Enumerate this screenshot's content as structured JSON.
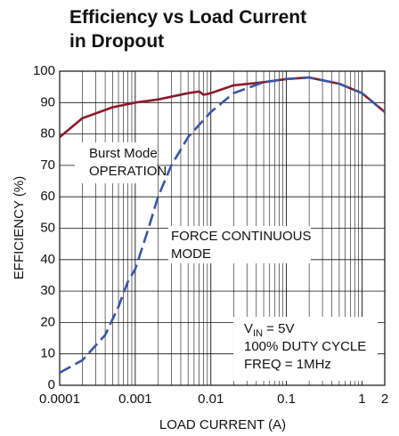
{
  "chart_data": {
    "type": "line",
    "title": "Efficiency vs Load Current in Dropout",
    "xlabel": "LOAD CURRENT (A)",
    "ylabel": "EFFICIENCY (%)",
    "xscale": "log",
    "xlim": [
      0.0001,
      2
    ],
    "ylim": [
      0,
      100
    ],
    "xticks": [
      0.0001,
      0.001,
      0.01,
      0.1,
      1,
      2
    ],
    "xminorticks": [
      0.0002,
      0.0003,
      0.0004,
      0.0005,
      0.0006,
      0.0007,
      0.0008,
      0.0009,
      0.002,
      0.003,
      0.004,
      0.005,
      0.006,
      0.007,
      0.008,
      0.009,
      0.02,
      0.03,
      0.04,
      0.05,
      0.06,
      0.07,
      0.08,
      0.09,
      0.2,
      0.3,
      0.4,
      0.5,
      0.6,
      0.7,
      0.8,
      0.9
    ],
    "yticks": [
      0,
      10,
      20,
      30,
      40,
      50,
      60,
      70,
      80,
      90,
      100
    ],
    "grid": true,
    "series": [
      {
        "name": "Burst Mode OPERATION",
        "color": "#8b1a2b",
        "dash": false,
        "x": [
          0.0001,
          0.0002,
          0.0005,
          0.001,
          0.002,
          0.005,
          0.007,
          0.008,
          0.01,
          0.02,
          0.05,
          0.1,
          0.2,
          0.5,
          1,
          2
        ],
        "values": [
          79,
          85,
          88.5,
          90,
          91,
          93,
          93.5,
          92.5,
          93,
          95.5,
          96.5,
          97.5,
          98,
          96,
          93,
          87
        ]
      },
      {
        "name": "FORCE CONTINUOUS MODE",
        "color": "#3a55a4",
        "dash": true,
        "x": [
          0.0001,
          0.0002,
          0.0004,
          0.0006,
          0.0008,
          0.001,
          0.0015,
          0.002,
          0.003,
          0.005,
          0.01,
          0.02,
          0.05,
          0.1,
          0.2,
          0.5,
          1,
          2
        ],
        "values": [
          4,
          8,
          16,
          25,
          33,
          37,
          50,
          60,
          70,
          79,
          87,
          93,
          96.5,
          97.5,
          98,
          96,
          93,
          87
        ]
      }
    ],
    "annotations": [
      {
        "lines": [
          "Burst Mode",
          "OPERATION"
        ]
      },
      {
        "lines": [
          "FORCE CONTINUOUS",
          "MODE"
        ]
      },
      {
        "lines": [
          "100% DUTY CYCLE",
          "FREQ = 1MHz"
        ]
      }
    ],
    "vin": {
      "symbol": "V",
      "subscript": "IN",
      "rest": " = 5V"
    }
  }
}
